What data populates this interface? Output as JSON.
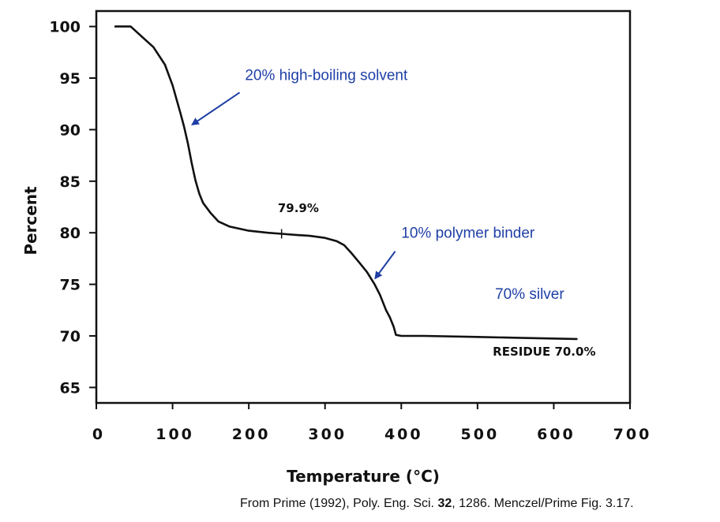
{
  "chart_data": {
    "type": "line",
    "title": "",
    "xlabel": "Temperature (°C)",
    "ylabel": "Percent",
    "xlim": [
      0,
      700
    ],
    "ylim": [
      63.5,
      101.5
    ],
    "xticks": [
      0,
      100,
      200,
      300,
      400,
      500,
      600,
      700
    ],
    "yticks": [
      65,
      70,
      75,
      80,
      85,
      90,
      95,
      100
    ],
    "grid": false,
    "series": [
      {
        "x": [
          25,
          45,
          60,
          75,
          90,
          100,
          110,
          115,
          120,
          125,
          130,
          135,
          140,
          150,
          160,
          175,
          200,
          225,
          243,
          260,
          280,
          300,
          315,
          325,
          335,
          345,
          355,
          365,
          372,
          380,
          385,
          390,
          393,
          400,
          430,
          500,
          560,
          630
        ],
        "y": [
          100,
          100,
          99,
          98,
          96.3,
          94.3,
          91.7,
          90.3,
          88.7,
          86.8,
          85.1,
          83.8,
          82.9,
          81.9,
          81.1,
          80.6,
          80.2,
          80.0,
          79.9,
          79.8,
          79.7,
          79.5,
          79.2,
          78.8,
          78.0,
          77.1,
          76.2,
          75.0,
          74.0,
          72.5,
          71.8,
          70.9,
          70.1,
          70.0,
          70.0,
          69.9,
          69.8,
          69.7
        ]
      }
    ],
    "marker": {
      "x": 243,
      "y": 79.9
    },
    "labels": [
      {
        "text": "79.9%",
        "x": 238,
        "y": 82.0
      },
      {
        "text": "RESIDUE 70.0%",
        "x": 520,
        "y": 68.1
      }
    ],
    "annotations": [
      {
        "text": "20% high-boiling solvent",
        "x": 195,
        "y": 94.8,
        "arrow_from": [
          188,
          93.6
        ],
        "arrow_to": [
          126,
          90.5
        ]
      },
      {
        "text": "10% polymer binder",
        "x": 400,
        "y": 79.5,
        "arrow_from": [
          392,
          78.2
        ],
        "arrow_to": [
          366,
          75.6
        ]
      },
      {
        "text": "70% silver",
        "x": 523,
        "y": 73.6
      }
    ]
  },
  "citation": {
    "text_before": "From Prime (1992), Poly. Eng. Sci. ",
    "volume": "32",
    "text_after": ", 1286. Menczel/Prime Fig. 3.17."
  }
}
